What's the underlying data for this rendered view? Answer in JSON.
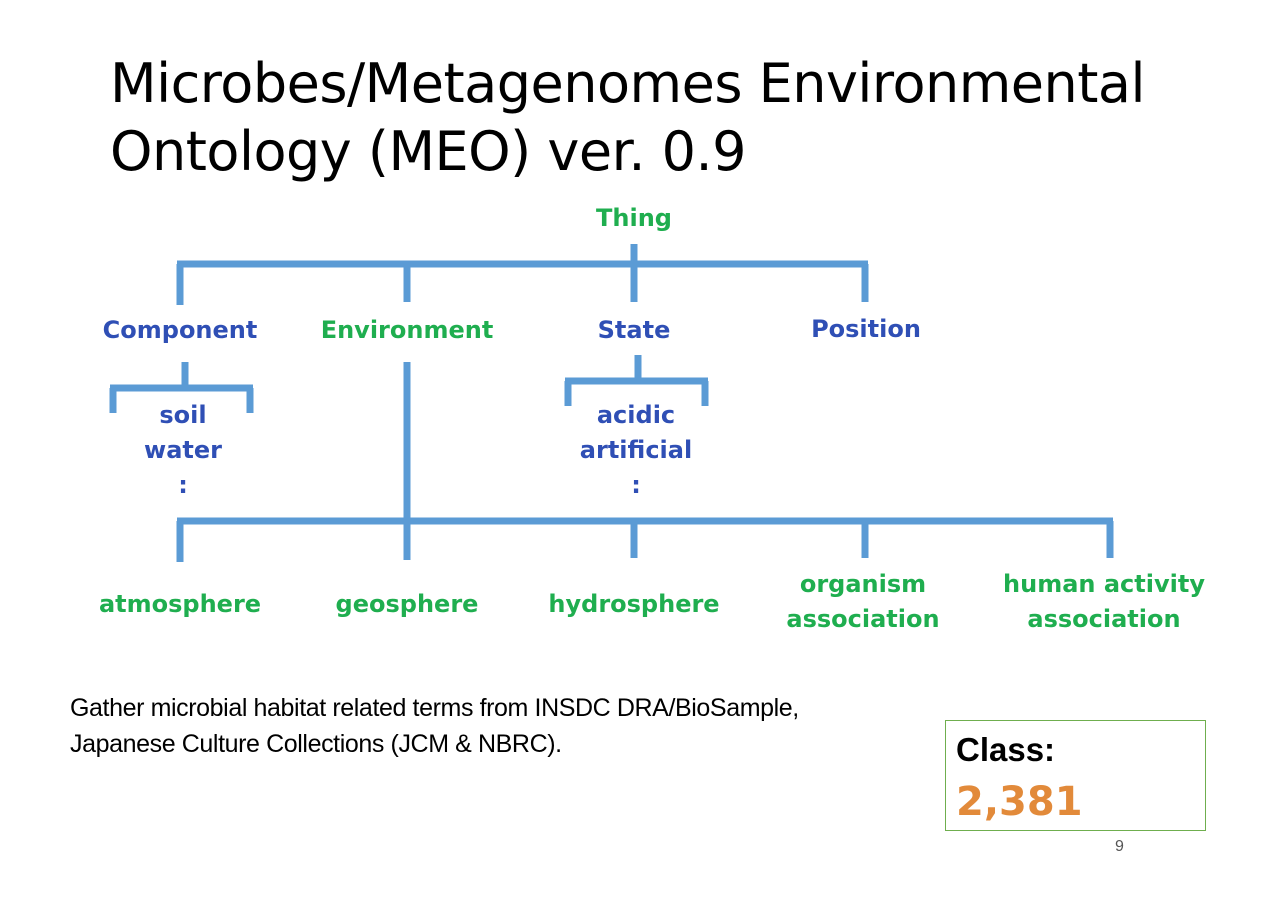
{
  "title": {
    "line1": "Microbes/Metagenomes Environmental",
    "line2": "Ontology (MEO) ver. 0.9"
  },
  "tree": {
    "root": "Thing",
    "top_level": {
      "component": "Component",
      "environment": "Environment",
      "state": "State",
      "position": "Position"
    },
    "component_children": [
      "soil",
      "water",
      ":"
    ],
    "state_children": [
      "acidic",
      "artificial",
      ":"
    ],
    "environment_children": {
      "atmosphere": "atmosphere",
      "geosphere": "geosphere",
      "hydrosphere": "hydrosphere",
      "organism_association": [
        "organism",
        "association"
      ],
      "human_activity_association": [
        "human activity",
        "association"
      ]
    }
  },
  "description": {
    "line1": "Gather microbial habitat related terms from INSDC DRA/BioSample,",
    "line2": "Japanese Culture Collections (JCM & NBRC)."
  },
  "class_box": {
    "label": "Class:",
    "value": "2,381"
  },
  "page_number": "9",
  "colors": {
    "connector": "#5b9bd5",
    "blue_text": "#2f4fb5",
    "green_text": "#1fae4f",
    "class_value": "#e28a3a",
    "class_border": "#6fae4e"
  }
}
